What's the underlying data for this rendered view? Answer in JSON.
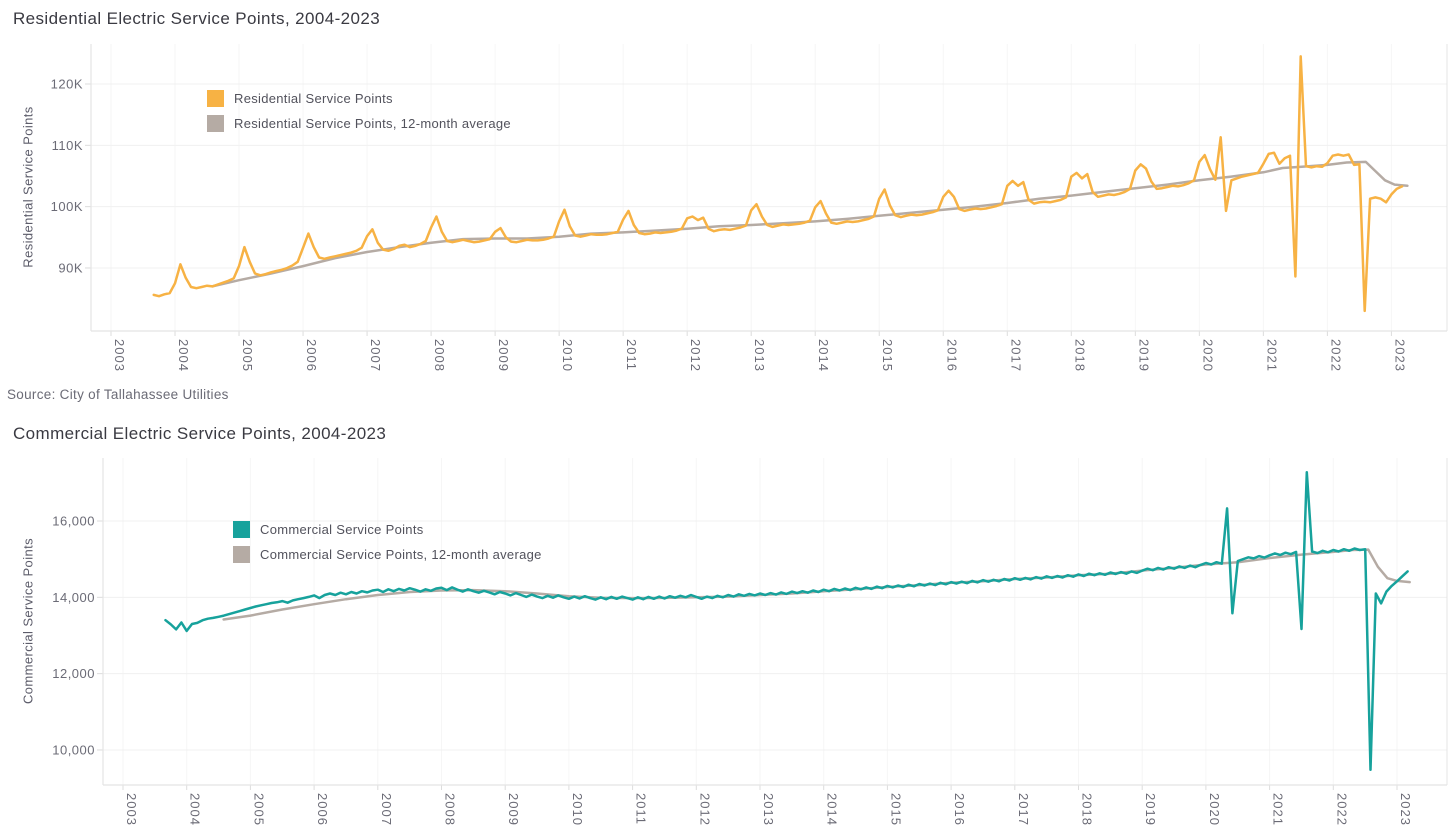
{
  "page": {
    "background": "#ffffff",
    "source_note": "Source: City of Tallahassee Utilities",
    "text_color": "#6b6b76",
    "grid_color": "#f0f0f0",
    "axis_color": "#e4e4e4"
  },
  "chart_data": [
    {
      "type": "line",
      "title": "Residential Electric Service Points, 2004-2023",
      "xlabel": "",
      "ylabel": "Residential Service Points",
      "xlim": [
        2002.7,
        2023.9
      ],
      "ylim": [
        79700,
        126600
      ],
      "grid": true,
      "legend_position": "top-left-inside",
      "x_ticks": [
        2003,
        2004,
        2005,
        2006,
        2007,
        2008,
        2009,
        2010,
        2011,
        2012,
        2013,
        2014,
        2015,
        2016,
        2017,
        2018,
        2019,
        2020,
        2021,
        2022,
        2023
      ],
      "y_ticks": [
        {
          "value": 120000,
          "label": "120K"
        },
        {
          "value": 110000,
          "label": "110K"
        },
        {
          "value": 100000,
          "label": "100K"
        },
        {
          "value": 90000,
          "label": "90K"
        }
      ],
      "series": [
        {
          "name": "Residential Service Points",
          "color": "#F7B244",
          "x_start": 2003.6667,
          "x_step": 0.0833333,
          "x_unit": "decimal year (monthly, Sep 2003 - Mar 2023)",
          "values": [
            85600,
            85400,
            85700,
            85900,
            87500,
            90600,
            88400,
            86900,
            86700,
            86900,
            87100,
            87000,
            87300,
            87600,
            87900,
            88300,
            90300,
            93400,
            91000,
            89100,
            88800,
            89000,
            89300,
            89500,
            89700,
            90000,
            90400,
            91000,
            93300,
            95600,
            93400,
            91700,
            91500,
            91700,
            91900,
            92100,
            92300,
            92500,
            92800,
            93300,
            95200,
            96300,
            94100,
            93000,
            92800,
            93100,
            93600,
            93800,
            93400,
            93600,
            93900,
            94400,
            96600,
            98400,
            95900,
            94400,
            94200,
            94400,
            94600,
            94400,
            94200,
            94300,
            94500,
            94700,
            95900,
            96500,
            95000,
            94300,
            94200,
            94400,
            94600,
            94500,
            94500,
            94600,
            94800,
            95100,
            97600,
            99500,
            96800,
            95300,
            95100,
            95300,
            95500,
            95400,
            95400,
            95500,
            95700,
            95900,
            97900,
            99300,
            97000,
            95700,
            95500,
            95600,
            95800,
            95700,
            95800,
            95900,
            96100,
            96400,
            98100,
            98400,
            97800,
            98200,
            96400,
            96000,
            96200,
            96300,
            96200,
            96400,
            96600,
            96900,
            99400,
            100400,
            98400,
            97000,
            96700,
            96900,
            97100,
            97000,
            97100,
            97200,
            97400,
            97700,
            99900,
            100900,
            98900,
            97400,
            97200,
            97400,
            97600,
            97500,
            97600,
            97800,
            98000,
            98400,
            101300,
            102800,
            100200,
            98600,
            98300,
            98500,
            98700,
            98600,
            98700,
            98900,
            99100,
            99400,
            101600,
            102600,
            101600,
            99600,
            99300,
            99500,
            99700,
            99600,
            99700,
            99900,
            100100,
            100400,
            103400,
            104200,
            103400,
            104000,
            101100,
            100500,
            100700,
            100800,
            100700,
            100900,
            101100,
            101500,
            104900,
            105500,
            104600,
            105300,
            102400,
            101600,
            101800,
            102000,
            101900,
            102100,
            102400,
            102900,
            105900,
            106900,
            106200,
            104100,
            102900,
            103000,
            103200,
            103400,
            103300,
            103500,
            103800,
            104300,
            107300,
            108400,
            106100,
            104400,
            111300,
            99300,
            104300,
            104600,
            104900,
            105100,
            105300,
            105500,
            107000,
            108600,
            108800,
            107000,
            107900,
            108300,
            88600,
            124500,
            106600,
            106400,
            106600,
            106500,
            107100,
            108300,
            108500,
            108300,
            108500,
            106800,
            106900,
            83000,
            101300,
            101500,
            101300,
            100700,
            102000,
            102900,
            103300
          ]
        },
        {
          "name": "Residential Service Points, 12-month average",
          "color": "#B5ABA4",
          "x_unit": "decimal year",
          "points": [
            [
              2004.58,
              87000
            ],
            [
              2005.0,
              88000
            ],
            [
              2005.5,
              89100
            ],
            [
              2006.0,
              90300
            ],
            [
              2006.5,
              91600
            ],
            [
              2007.0,
              92600
            ],
            [
              2007.5,
              93400
            ],
            [
              2008.0,
              94100
            ],
            [
              2008.5,
              94700
            ],
            [
              2009.0,
              94800
            ],
            [
              2009.5,
              94800
            ],
            [
              2010.0,
              95100
            ],
            [
              2010.5,
              95600
            ],
            [
              2011.0,
              95800
            ],
            [
              2011.5,
              96100
            ],
            [
              2012.0,
              96400
            ],
            [
              2012.5,
              96800
            ],
            [
              2013.0,
              97000
            ],
            [
              2013.5,
              97300
            ],
            [
              2014.0,
              97600
            ],
            [
              2014.5,
              98000
            ],
            [
              2015.0,
              98500
            ],
            [
              2015.5,
              99000
            ],
            [
              2016.0,
              99500
            ],
            [
              2016.5,
              100000
            ],
            [
              2017.0,
              100600
            ],
            [
              2017.5,
              101300
            ],
            [
              2018.0,
              101800
            ],
            [
              2018.5,
              102400
            ],
            [
              2019.0,
              103000
            ],
            [
              2019.5,
              103600
            ],
            [
              2020.0,
              104300
            ],
            [
              2020.5,
              104900
            ],
            [
              2021.0,
              105600
            ],
            [
              2021.3,
              106300
            ],
            [
              2021.6,
              106500
            ],
            [
              2022.0,
              106800
            ],
            [
              2022.3,
              107200
            ],
            [
              2022.6,
              107300
            ],
            [
              2022.75,
              105800
            ],
            [
              2022.9,
              104300
            ],
            [
              2023.05,
              103600
            ],
            [
              2023.25,
              103400
            ]
          ]
        }
      ]
    },
    {
      "type": "line",
      "title": "Commercial Electric Service Points, 2004-2023",
      "xlabel": "",
      "ylabel": "Commercial Service Points",
      "xlim": [
        2002.7,
        2023.9
      ],
      "ylim": [
        9080,
        17650
      ],
      "grid": true,
      "legend_position": "top-left-inside",
      "x_ticks": [
        2003,
        2004,
        2005,
        2006,
        2007,
        2008,
        2009,
        2010,
        2011,
        2012,
        2013,
        2014,
        2015,
        2016,
        2017,
        2018,
        2019,
        2020,
        2021,
        2022,
        2023
      ],
      "y_ticks": [
        {
          "value": 16000,
          "label": "16,000"
        },
        {
          "value": 14000,
          "label": "14,000"
        },
        {
          "value": 12000,
          "label": "12,000"
        },
        {
          "value": 10000,
          "label": "10,000"
        }
      ],
      "series": [
        {
          "name": "Commercial Service Points",
          "color": "#17A29C",
          "x_start": 2003.6667,
          "x_step": 0.0833333,
          "x_unit": "decimal year (monthly, Sep 2003 - Mar 2023)",
          "values": [
            13400,
            13290,
            13160,
            13340,
            13120,
            13300,
            13330,
            13400,
            13440,
            13460,
            13490,
            13520,
            13560,
            13600,
            13640,
            13680,
            13720,
            13760,
            13790,
            13820,
            13850,
            13870,
            13900,
            13860,
            13920,
            13950,
            13980,
            14010,
            14050,
            13980,
            14060,
            14100,
            14060,
            14120,
            14080,
            14140,
            14100,
            14160,
            14130,
            14180,
            14200,
            14140,
            14210,
            14160,
            14220,
            14180,
            14240,
            14200,
            14150,
            14210,
            14170,
            14230,
            14250,
            14190,
            14260,
            14200,
            14150,
            14210,
            14160,
            14120,
            14170,
            14130,
            14080,
            14140,
            14100,
            14050,
            14110,
            14060,
            14010,
            14070,
            14020,
            13980,
            14040,
            13990,
            14050,
            14000,
            13960,
            14020,
            13970,
            14030,
            13980,
            13940,
            14000,
            13950,
            14010,
            13960,
            14020,
            13980,
            13940,
            14000,
            13950,
            14010,
            13960,
            14020,
            13970,
            14030,
            13990,
            14040,
            14000,
            14060,
            14010,
            13960,
            14020,
            13980,
            14040,
            14000,
            14060,
            14020,
            14080,
            14040,
            14090,
            14050,
            14100,
            14060,
            14110,
            14070,
            14130,
            14090,
            14150,
            14110,
            14160,
            14120,
            14180,
            14140,
            14200,
            14160,
            14220,
            14180,
            14230,
            14190,
            14250,
            14210,
            14260,
            14220,
            14280,
            14240,
            14300,
            14260,
            14310,
            14270,
            14330,
            14290,
            14350,
            14310,
            14360,
            14320,
            14380,
            14340,
            14400,
            14360,
            14410,
            14370,
            14430,
            14390,
            14450,
            14410,
            14460,
            14420,
            14480,
            14440,
            14500,
            14460,
            14510,
            14470,
            14530,
            14490,
            14550,
            14510,
            14560,
            14520,
            14580,
            14540,
            14600,
            14560,
            14620,
            14580,
            14630,
            14590,
            14650,
            14610,
            14660,
            14620,
            14680,
            14640,
            14700,
            14750,
            14710,
            14770,
            14730,
            14790,
            14750,
            14810,
            14770,
            14830,
            14790,
            14850,
            14900,
            14860,
            14920,
            14880,
            16330,
            13580,
            14950,
            15000,
            15050,
            15020,
            15080,
            15040,
            15100,
            15150,
            15110,
            15170,
            15130,
            15190,
            13170,
            17280,
            15200,
            15160,
            15220,
            15180,
            15240,
            15200,
            15260,
            15220,
            15280,
            15240,
            15260,
            9480,
            14100,
            13840,
            14150,
            14300,
            14420,
            14550,
            14680
          ]
        },
        {
          "name": "Commercial Service Points, 12-month average",
          "color": "#B5ABA4",
          "x_unit": "decimal year",
          "points": [
            [
              2004.58,
              13420
            ],
            [
              2005.0,
              13520
            ],
            [
              2005.5,
              13680
            ],
            [
              2006.0,
              13820
            ],
            [
              2006.5,
              13950
            ],
            [
              2007.0,
              14060
            ],
            [
              2007.5,
              14140
            ],
            [
              2008.0,
              14180
            ],
            [
              2008.5,
              14190
            ],
            [
              2009.0,
              14160
            ],
            [
              2009.5,
              14100
            ],
            [
              2010.0,
              14030
            ],
            [
              2010.5,
              13990
            ],
            [
              2011.0,
              13980
            ],
            [
              2011.5,
              13985
            ],
            [
              2012.0,
              14000
            ],
            [
              2012.5,
              14020
            ],
            [
              2013.0,
              14060
            ],
            [
              2013.5,
              14100
            ],
            [
              2014.0,
              14160
            ],
            [
              2014.5,
              14210
            ],
            [
              2015.0,
              14270
            ],
            [
              2015.5,
              14320
            ],
            [
              2016.0,
              14380
            ],
            [
              2016.5,
              14420
            ],
            [
              2017.0,
              14480
            ],
            [
              2017.5,
              14520
            ],
            [
              2018.0,
              14580
            ],
            [
              2018.5,
              14620
            ],
            [
              2019.0,
              14700
            ],
            [
              2019.5,
              14770
            ],
            [
              2020.0,
              14860
            ],
            [
              2020.5,
              14920
            ],
            [
              2021.0,
              15030
            ],
            [
              2021.5,
              15120
            ],
            [
              2022.0,
              15190
            ],
            [
              2022.3,
              15240
            ],
            [
              2022.55,
              15250
            ],
            [
              2022.7,
              14800
            ],
            [
              2022.85,
              14500
            ],
            [
              2023.0,
              14430
            ],
            [
              2023.2,
              14400
            ]
          ]
        }
      ]
    }
  ]
}
